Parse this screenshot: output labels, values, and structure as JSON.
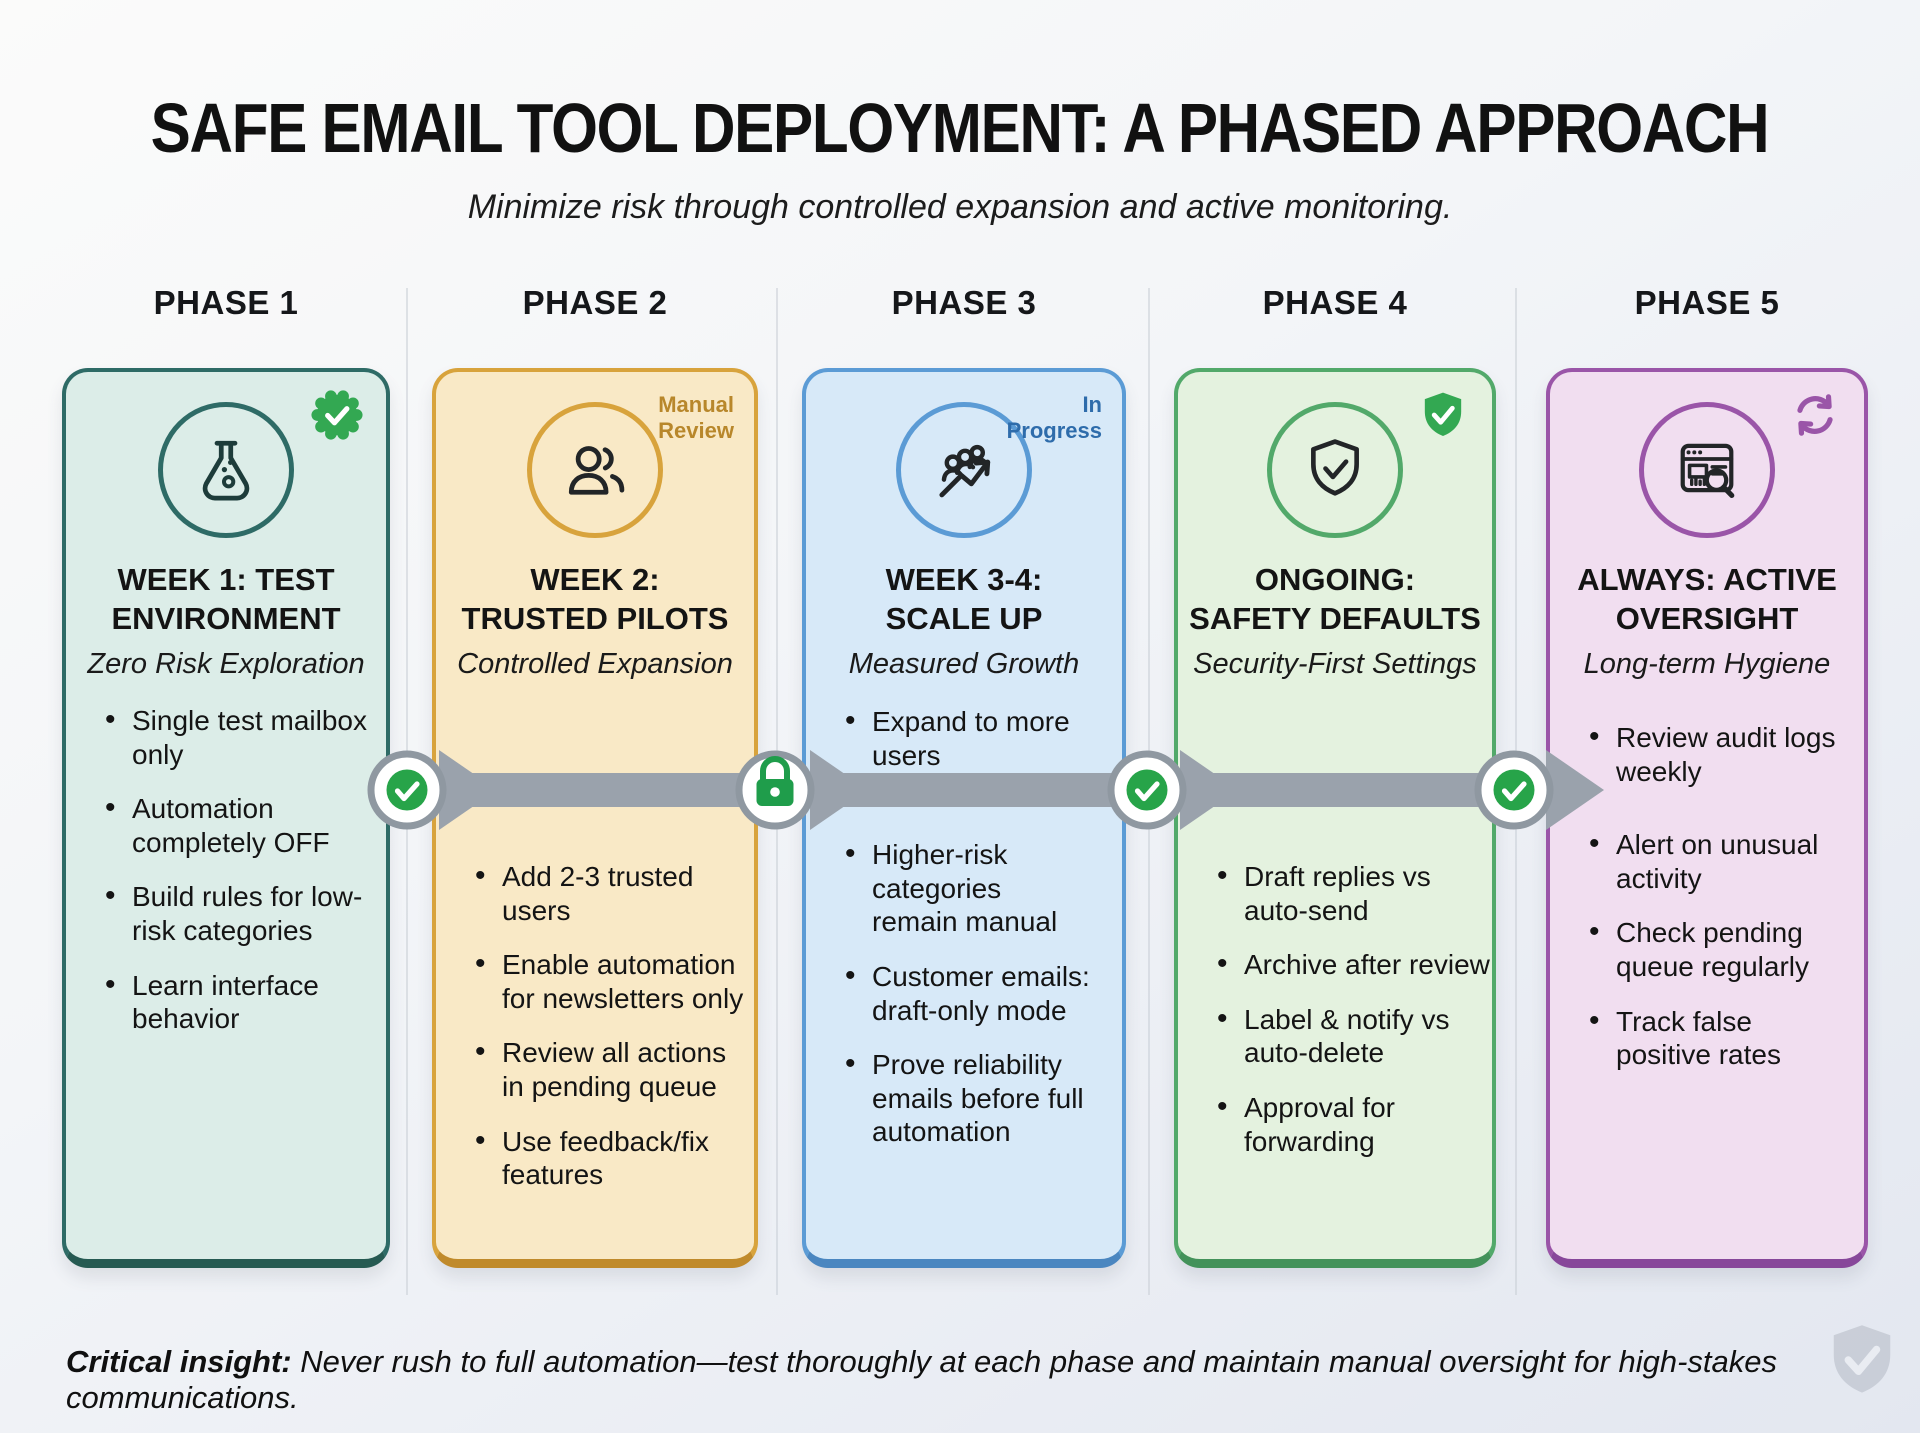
{
  "title": "SAFE EMAIL TOOL DEPLOYMENT: A PHASED APPROACH",
  "subtitle": "Minimize risk through controlled expansion and active monitoring.",
  "phases": [
    {
      "label": "PHASE 1",
      "title": "WEEK 1: TEST\nENVIRONMENT",
      "tagline": "Zero Risk Exploration",
      "icon": "flask-icon",
      "badge": {
        "type": "icon",
        "icon": "seal-check-icon"
      },
      "bullets": [
        "Single test mailbox only",
        "Automation completely OFF",
        "Build rules for low-risk categories",
        "Learn interface behavior"
      ],
      "colors": {
        "bg": "#dcede8",
        "border": "#2e6b66",
        "border_dark": "#265a52",
        "accent": "#2e6b66",
        "icon": "#1d3c3a",
        "badge": "#33a852"
      }
    },
    {
      "label": "PHASE 2",
      "title": "WEEK 2:\nTRUSTED PILOTS",
      "tagline": "Controlled Expansion",
      "icon": "users-icon",
      "badge": {
        "type": "text",
        "text": "Manual\nReview"
      },
      "bullets": [
        "Add 2-3 trusted users",
        "Enable automation for newsletters only",
        "Review all actions in pending queue",
        "Use feedback/fix features"
      ],
      "colors": {
        "bg": "#f9e9c6",
        "border": "#d8a33c",
        "border_dark": "#c08a2b",
        "accent": "#d8a33c",
        "icon": "#222527",
        "badge": "#b8872b"
      }
    },
    {
      "label": "PHASE 3",
      "title": "WEEK 3-4:\nSCALE UP",
      "tagline": "Measured Growth",
      "icon": "growth-icon",
      "badge": {
        "type": "text",
        "text": "In\nProgress"
      },
      "bullets": [
        "Expand to more users",
        "Higher-risk categories remain manual",
        "Customer emails: draft-only mode",
        "Prove reliability emails before full automation"
      ],
      "colors": {
        "bg": "#d7e9f8",
        "border": "#5b9bd5",
        "border_dark": "#4a86c0",
        "accent": "#5b9bd5",
        "icon": "#222527",
        "badge": "#2e6cab"
      }
    },
    {
      "label": "PHASE 4",
      "title": "ONGOING:\nSAFETY DEFAULTS",
      "tagline": "Security-First Settings",
      "icon": "shield-check-icon",
      "badge": {
        "type": "icon",
        "icon": "shield-check-badge-icon"
      },
      "bullets": [
        "Draft replies vs auto-send",
        "Archive after review",
        "Label & notify vs auto-delete",
        "Approval for forwarding"
      ],
      "colors": {
        "bg": "#e4f2df",
        "border": "#52a96a",
        "border_dark": "#43925a",
        "accent": "#52a96a",
        "icon": "#222527",
        "badge": "#33a852"
      }
    },
    {
      "label": "PHASE 5",
      "title": "ALWAYS: ACTIVE\nOVERSIGHT",
      "tagline": "Long-term Hygiene",
      "icon": "audit-icon",
      "badge": {
        "type": "icon",
        "icon": "refresh-icon"
      },
      "bullets": [
        "Review audit logs weekly",
        "Alert on unusual activity",
        "Check pending queue regularly",
        "Track false positive rates"
      ],
      "colors": {
        "bg": "#f1def0",
        "border": "#9a55a8",
        "border_dark": "#87479a",
        "accent": "#9a55a8",
        "icon": "#222527",
        "badge": "#9a55a8"
      }
    }
  ],
  "connector": {
    "milestones": [
      "check-icon",
      "lock-icon",
      "check-icon",
      "check-icon"
    ],
    "colors": {
      "ring": "#8f98a1",
      "arrow": "#9aa2ac",
      "check_green": "#27a449",
      "lock_green": "#1f9d4b"
    }
  },
  "footer": {
    "lead": "Critical insight:",
    "text": " Never rush to full automation—test thoroughly at each phase and maintain manual oversight for high-stakes communications.",
    "watermark": "shield-check-watermark-icon"
  }
}
